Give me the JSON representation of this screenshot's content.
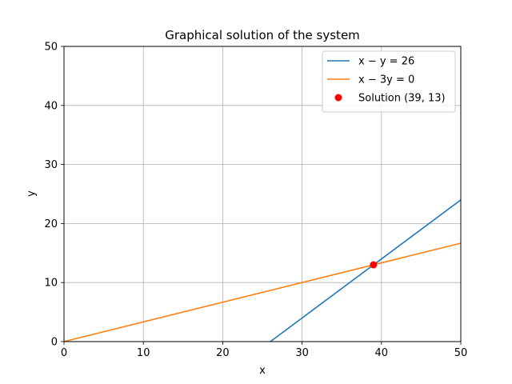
{
  "chart_data": {
    "type": "line",
    "title": "Graphical solution of the system",
    "xlabel": "x",
    "ylabel": "y",
    "xlim": [
      0,
      50
    ],
    "ylim": [
      0,
      50
    ],
    "xticks": [
      0,
      10,
      20,
      30,
      40,
      50
    ],
    "yticks": [
      0,
      10,
      20,
      30,
      40,
      50
    ],
    "grid": true,
    "legend_position": "top-right",
    "series": [
      {
        "name": "x − y = 26",
        "equation": "x - y = 26",
        "color": "#1f77b4",
        "x": [
          26,
          50
        ],
        "y": [
          0,
          24
        ]
      },
      {
        "name": "x − 3y = 0",
        "equation": "x - 3y = 0",
        "color": "#ff7f0e",
        "x": [
          0,
          50
        ],
        "y": [
          0,
          16.667
        ]
      }
    ],
    "points": [
      {
        "name": "Solution (39, 13)",
        "x": 39,
        "y": 13,
        "color": "#ff0000"
      }
    ]
  }
}
